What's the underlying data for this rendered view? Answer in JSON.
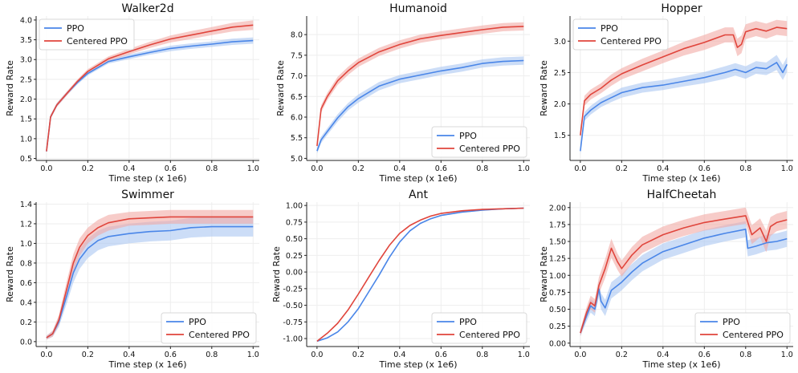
{
  "figure": {
    "layout": "2x3 grid of line charts"
  },
  "colors": {
    "ppo": "#4a86e8",
    "centered_ppo": "#e0453c",
    "ppo_band": "#aac6f2",
    "centered_band": "#f2aaa5",
    "grid": "#eeeeee"
  },
  "chart_data": [
    {
      "type": "line",
      "title": "Walker2d",
      "xlabel": "Time step (x 1e6)",
      "ylabel": "Reward Rate",
      "xlim": [
        -0.05,
        1.03
      ],
      "ylim": [
        0.45,
        4.1
      ],
      "xticks": [
        0.0,
        0.2,
        0.4,
        0.6,
        0.8,
        1.0
      ],
      "xtick_labels": [
        "0.0",
        "0.2",
        "0.4",
        "0.6",
        "0.8",
        "1.0"
      ],
      "yticks": [
        0.5,
        1.0,
        1.5,
        2.0,
        2.5,
        3.0,
        3.5,
        4.0
      ],
      "ytick_labels": [
        "0.5",
        "1.0",
        "1.5",
        "2.0",
        "2.5",
        "3.0",
        "3.5",
        "4.0"
      ],
      "legend": {
        "position": "top-left",
        "entries": [
          "PPO",
          "Centered PPO"
        ]
      },
      "grid": true,
      "series": [
        {
          "name": "PPO",
          "color": "#4a86e8",
          "x": [
            0.0,
            0.02,
            0.05,
            0.1,
            0.15,
            0.2,
            0.3,
            0.4,
            0.5,
            0.6,
            0.7,
            0.8,
            0.9,
            1.0
          ],
          "values": [
            0.68,
            1.55,
            1.85,
            2.15,
            2.42,
            2.65,
            2.95,
            3.07,
            3.18,
            3.28,
            3.34,
            3.39,
            3.45,
            3.48
          ],
          "band": [
            0.04,
            0.05,
            0.05,
            0.05,
            0.05,
            0.05,
            0.05,
            0.06,
            0.06,
            0.07,
            0.07,
            0.07,
            0.08,
            0.08
          ]
        },
        {
          "name": "Centered PPO",
          "color": "#e0453c",
          "x": [
            0.0,
            0.02,
            0.05,
            0.1,
            0.15,
            0.2,
            0.3,
            0.4,
            0.5,
            0.6,
            0.7,
            0.8,
            0.9,
            1.0
          ],
          "values": [
            0.68,
            1.55,
            1.85,
            2.15,
            2.45,
            2.7,
            3.02,
            3.2,
            3.37,
            3.52,
            3.62,
            3.72,
            3.82,
            3.87
          ],
          "band": [
            0.04,
            0.05,
            0.05,
            0.05,
            0.05,
            0.06,
            0.06,
            0.07,
            0.08,
            0.09,
            0.1,
            0.1,
            0.11,
            0.12
          ]
        }
      ]
    },
    {
      "type": "line",
      "title": "Humanoid",
      "xlabel": "Time step (x 1e6)",
      "ylabel": "Reward Rate",
      "xlim": [
        -0.05,
        1.03
      ],
      "ylim": [
        4.95,
        8.45
      ],
      "xticks": [
        0.0,
        0.2,
        0.4,
        0.6,
        0.8,
        1.0
      ],
      "xtick_labels": [
        "0.0",
        "0.2",
        "0.4",
        "0.6",
        "0.8",
        "1.0"
      ],
      "yticks": [
        5.0,
        5.5,
        6.0,
        6.5,
        7.0,
        7.5,
        8.0
      ],
      "ytick_labels": [
        "5.0",
        "5.5",
        "6.0",
        "6.5",
        "7.0",
        "7.5",
        "8.0"
      ],
      "legend": {
        "position": "bottom-right",
        "entries": [
          "PPO",
          "Centered PPO"
        ]
      },
      "grid": true,
      "series": [
        {
          "name": "PPO",
          "color": "#4a86e8",
          "x": [
            0.0,
            0.02,
            0.05,
            0.1,
            0.15,
            0.2,
            0.3,
            0.4,
            0.5,
            0.6,
            0.7,
            0.8,
            0.9,
            1.0
          ],
          "values": [
            5.18,
            5.45,
            5.65,
            5.98,
            6.25,
            6.45,
            6.75,
            6.92,
            7.02,
            7.12,
            7.2,
            7.3,
            7.35,
            7.37
          ],
          "band": [
            0.07,
            0.08,
            0.08,
            0.09,
            0.09,
            0.1,
            0.1,
            0.1,
            0.1,
            0.1,
            0.1,
            0.1,
            0.1,
            0.1
          ]
        },
        {
          "name": "Centered PPO",
          "color": "#e0453c",
          "x": [
            0.0,
            0.02,
            0.05,
            0.1,
            0.15,
            0.2,
            0.3,
            0.4,
            0.5,
            0.6,
            0.7,
            0.8,
            0.9,
            1.0
          ],
          "values": [
            5.3,
            6.2,
            6.5,
            6.88,
            7.12,
            7.32,
            7.58,
            7.76,
            7.9,
            7.98,
            8.05,
            8.12,
            8.18,
            8.2
          ],
          "band": [
            0.07,
            0.09,
            0.09,
            0.1,
            0.1,
            0.1,
            0.1,
            0.1,
            0.1,
            0.1,
            0.1,
            0.1,
            0.1,
            0.1
          ]
        }
      ]
    },
    {
      "type": "line",
      "title": "Hopper",
      "xlabel": "Time step (x 1e6)",
      "ylabel": "Reward Rate",
      "xlim": [
        -0.05,
        1.03
      ],
      "ylim": [
        1.1,
        3.4
      ],
      "xticks": [
        0.0,
        0.2,
        0.4,
        0.6,
        0.8,
        1.0
      ],
      "xtick_labels": [
        "0.0",
        "0.2",
        "0.4",
        "0.6",
        "0.8",
        "1.0"
      ],
      "yticks": [
        1.5,
        2.0,
        2.5,
        3.0
      ],
      "ytick_labels": [
        "1.5",
        "2.0",
        "2.5",
        "3.0"
      ],
      "legend": {
        "position": "top-left",
        "entries": [
          "PPO",
          "Centered PPO"
        ]
      },
      "grid": true,
      "series": [
        {
          "name": "PPO",
          "color": "#4a86e8",
          "x": [
            0.0,
            0.02,
            0.05,
            0.1,
            0.15,
            0.2,
            0.3,
            0.4,
            0.5,
            0.6,
            0.7,
            0.75,
            0.8,
            0.85,
            0.9,
            0.95,
            0.98,
            1.0
          ],
          "values": [
            1.25,
            1.8,
            1.9,
            2.02,
            2.1,
            2.18,
            2.26,
            2.3,
            2.36,
            2.42,
            2.5,
            2.55,
            2.5,
            2.58,
            2.56,
            2.66,
            2.5,
            2.63
          ],
          "band": [
            0.06,
            0.07,
            0.07,
            0.07,
            0.07,
            0.08,
            0.08,
            0.08,
            0.08,
            0.09,
            0.1,
            0.1,
            0.1,
            0.1,
            0.1,
            0.12,
            0.12,
            0.12
          ]
        },
        {
          "name": "Centered PPO",
          "color": "#e0453c",
          "x": [
            0.0,
            0.02,
            0.05,
            0.1,
            0.15,
            0.2,
            0.3,
            0.4,
            0.5,
            0.6,
            0.7,
            0.74,
            0.76,
            0.78,
            0.8,
            0.85,
            0.9,
            0.95,
            1.0
          ],
          "values": [
            1.5,
            2.05,
            2.15,
            2.25,
            2.38,
            2.48,
            2.62,
            2.75,
            2.88,
            2.98,
            3.1,
            3.1,
            2.9,
            2.95,
            3.15,
            3.2,
            3.16,
            3.22,
            3.2
          ],
          "band": [
            0.07,
            0.08,
            0.08,
            0.08,
            0.09,
            0.09,
            0.1,
            0.1,
            0.11,
            0.12,
            0.12,
            0.12,
            0.14,
            0.14,
            0.12,
            0.12,
            0.12,
            0.12,
            0.12
          ]
        }
      ]
    },
    {
      "type": "line",
      "title": "Swimmer",
      "xlabel": "Time step (x 1e6)",
      "ylabel": "Reward Rate",
      "xlim": [
        -0.05,
        1.03
      ],
      "ylim": [
        -0.05,
        1.42
      ],
      "xticks": [
        0.0,
        0.2,
        0.4,
        0.6,
        0.8,
        1.0
      ],
      "xtick_labels": [
        "0.0",
        "0.2",
        "0.4",
        "0.6",
        "0.8",
        "1.0"
      ],
      "yticks": [
        0.0,
        0.2,
        0.4,
        0.6,
        0.8,
        1.0,
        1.2,
        1.4
      ],
      "ytick_labels": [
        "0.0",
        "0.2",
        "0.4",
        "0.6",
        "0.8",
        "1.0",
        "1.2",
        "1.4"
      ],
      "legend": {
        "position": "bottom-right",
        "entries": [
          "PPO",
          "Centered PPO"
        ]
      },
      "grid": true,
      "series": [
        {
          "name": "PPO",
          "color": "#4a86e8",
          "x": [
            0.0,
            0.03,
            0.06,
            0.1,
            0.13,
            0.16,
            0.2,
            0.25,
            0.3,
            0.4,
            0.5,
            0.6,
            0.7,
            0.8,
            0.9,
            1.0
          ],
          "values": [
            0.04,
            0.08,
            0.2,
            0.48,
            0.7,
            0.84,
            0.95,
            1.03,
            1.07,
            1.1,
            1.12,
            1.13,
            1.16,
            1.17,
            1.17,
            1.17
          ],
          "band": [
            0.02,
            0.03,
            0.05,
            0.08,
            0.1,
            0.1,
            0.1,
            0.1,
            0.1,
            0.1,
            0.1,
            0.1,
            0.1,
            0.1,
            0.1,
            0.1
          ]
        },
        {
          "name": "Centered PPO",
          "color": "#e0453c",
          "x": [
            0.0,
            0.03,
            0.06,
            0.1,
            0.13,
            0.16,
            0.2,
            0.25,
            0.3,
            0.4,
            0.5,
            0.6,
            0.7,
            0.8,
            0.9,
            1.0
          ],
          "values": [
            0.04,
            0.08,
            0.22,
            0.55,
            0.8,
            0.96,
            1.08,
            1.16,
            1.21,
            1.25,
            1.26,
            1.27,
            1.27,
            1.27,
            1.27,
            1.27
          ],
          "band": [
            0.02,
            0.03,
            0.05,
            0.08,
            0.09,
            0.09,
            0.08,
            0.08,
            0.08,
            0.07,
            0.07,
            0.07,
            0.07,
            0.07,
            0.07,
            0.07
          ]
        }
      ]
    },
    {
      "type": "line",
      "title": "Ant",
      "xlabel": "Time step (x 1e6)",
      "ylabel": "Reward Rate",
      "xlim": [
        -0.05,
        1.03
      ],
      "ylim": [
        -1.12,
        1.05
      ],
      "xticks": [
        0.0,
        0.2,
        0.4,
        0.6,
        0.8,
        1.0
      ],
      "xtick_labels": [
        "0.0",
        "0.2",
        "0.4",
        "0.6",
        "0.8",
        "1.0"
      ],
      "yticks": [
        -1.0,
        -0.75,
        -0.5,
        -0.25,
        0.0,
        0.25,
        0.5,
        0.75,
        1.0
      ],
      "ytick_labels": [
        "-1.00",
        "-0.75",
        "-0.50",
        "-0.25",
        "0.00",
        "0.25",
        "0.50",
        "0.75",
        "1.00"
      ],
      "legend": {
        "position": "bottom-right",
        "entries": [
          "PPO",
          "Centered PPO"
        ]
      },
      "grid": true,
      "series": [
        {
          "name": "PPO",
          "color": "#4a86e8",
          "x": [
            0.0,
            0.05,
            0.1,
            0.15,
            0.2,
            0.25,
            0.3,
            0.35,
            0.4,
            0.45,
            0.5,
            0.55,
            0.6,
            0.7,
            0.8,
            0.9,
            1.0
          ],
          "values": [
            -1.04,
            -0.99,
            -0.9,
            -0.75,
            -0.55,
            -0.3,
            -0.05,
            0.22,
            0.45,
            0.62,
            0.73,
            0.8,
            0.85,
            0.9,
            0.93,
            0.95,
            0.96
          ],
          "band": [
            0.01,
            0.01,
            0.01,
            0.01,
            0.01,
            0.01,
            0.01,
            0.01,
            0.01,
            0.01,
            0.01,
            0.01,
            0.01,
            0.01,
            0.01,
            0.01,
            0.01
          ]
        },
        {
          "name": "Centered PPO",
          "color": "#e0453c",
          "x": [
            0.0,
            0.05,
            0.1,
            0.15,
            0.2,
            0.25,
            0.3,
            0.35,
            0.4,
            0.45,
            0.5,
            0.55,
            0.6,
            0.7,
            0.8,
            0.9,
            1.0
          ],
          "values": [
            -1.04,
            -0.92,
            -0.77,
            -0.57,
            -0.33,
            -0.08,
            0.17,
            0.4,
            0.58,
            0.7,
            0.78,
            0.84,
            0.88,
            0.92,
            0.94,
            0.95,
            0.96
          ],
          "band": [
            0.01,
            0.01,
            0.01,
            0.01,
            0.01,
            0.01,
            0.01,
            0.01,
            0.01,
            0.01,
            0.01,
            0.01,
            0.01,
            0.01,
            0.01,
            0.01,
            0.01
          ]
        }
      ]
    },
    {
      "type": "line",
      "title": "HalfCheetah",
      "xlabel": "Time step (x 1e6)",
      "ylabel": "Reward Rate",
      "xlim": [
        -0.05,
        1.03
      ],
      "ylim": [
        -0.05,
        2.08
      ],
      "xticks": [
        0.0,
        0.2,
        0.4,
        0.6,
        0.8,
        1.0
      ],
      "xtick_labels": [
        "0.0",
        "0.2",
        "0.4",
        "0.6",
        "0.8",
        "1.0"
      ],
      "yticks": [
        0.0,
        0.25,
        0.5,
        0.75,
        1.0,
        1.25,
        1.5,
        1.75,
        2.0
      ],
      "ytick_labels": [
        "0.00",
        "0.25",
        "0.50",
        "0.75",
        "1.00",
        "1.25",
        "1.50",
        "1.75",
        "2.00"
      ],
      "legend": {
        "position": "bottom-right",
        "entries": [
          "PPO",
          "Centered PPO"
        ]
      },
      "grid": true,
      "series": [
        {
          "name": "PPO",
          "color": "#4a86e8",
          "x": [
            0.0,
            0.03,
            0.05,
            0.07,
            0.09,
            0.1,
            0.12,
            0.15,
            0.18,
            0.2,
            0.25,
            0.3,
            0.4,
            0.5,
            0.6,
            0.7,
            0.8,
            0.81,
            0.85,
            0.9,
            0.95,
            1.0
          ],
          "values": [
            0.15,
            0.4,
            0.55,
            0.5,
            0.8,
            0.62,
            0.52,
            0.78,
            0.85,
            0.9,
            1.05,
            1.18,
            1.35,
            1.45,
            1.55,
            1.62,
            1.68,
            1.4,
            1.43,
            1.48,
            1.5,
            1.54
          ],
          "band": [
            0.05,
            0.08,
            0.1,
            0.1,
            0.12,
            0.12,
            0.12,
            0.12,
            0.12,
            0.12,
            0.12,
            0.12,
            0.12,
            0.12,
            0.12,
            0.12,
            0.12,
            0.12,
            0.12,
            0.12,
            0.12,
            0.12
          ]
        },
        {
          "name": "Centered PPO",
          "color": "#e0453c",
          "x": [
            0.0,
            0.03,
            0.05,
            0.07,
            0.09,
            0.12,
            0.15,
            0.18,
            0.2,
            0.25,
            0.3,
            0.4,
            0.5,
            0.6,
            0.7,
            0.8,
            0.83,
            0.87,
            0.9,
            0.92,
            0.95,
            1.0
          ],
          "values": [
            0.15,
            0.45,
            0.6,
            0.55,
            0.85,
            1.1,
            1.4,
            1.2,
            1.1,
            1.3,
            1.45,
            1.6,
            1.7,
            1.78,
            1.83,
            1.88,
            1.6,
            1.7,
            1.5,
            1.72,
            1.78,
            1.82
          ],
          "band": [
            0.05,
            0.08,
            0.1,
            0.1,
            0.12,
            0.14,
            0.14,
            0.12,
            0.12,
            0.12,
            0.12,
            0.12,
            0.12,
            0.12,
            0.12,
            0.12,
            0.14,
            0.14,
            0.16,
            0.14,
            0.13,
            0.13
          ]
        }
      ]
    }
  ]
}
